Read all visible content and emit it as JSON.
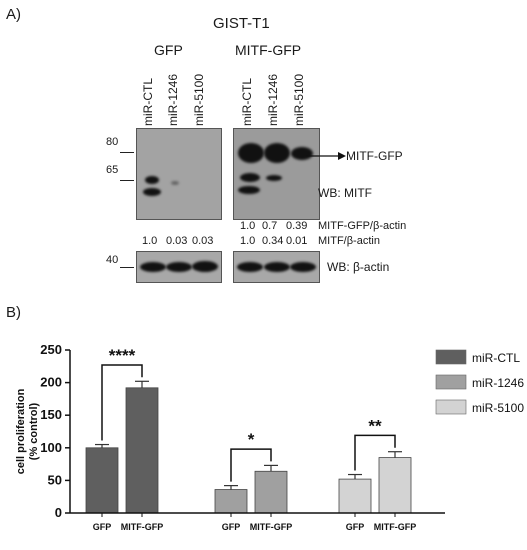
{
  "panelA": {
    "label": "A)",
    "title": "GIST-T1",
    "group_gfp": "GFP",
    "group_mitf": "MITF-GFP",
    "lanes": [
      "miR-CTL",
      "miR-1246",
      "miR-5100",
      "miR-CTL",
      "miR-1246",
      "miR-5100"
    ],
    "mw_markers": [
      "80",
      "65",
      "40"
    ],
    "arrow_label": "MITF-GFP",
    "wb_mitf": "WB: MITF",
    "wb_actin": "WB: β-actin",
    "ratio1_label": "MITF-GFP/β-actin",
    "ratio1_values": [
      "1.0",
      "0.7",
      "0.39"
    ],
    "ratio2_label": "MITF/β-actin",
    "ratio2_gfp_values": [
      "1.0",
      "0.03",
      "0.03"
    ],
    "ratio2_mitf_values": [
      "1.0",
      "0.34",
      "0.01"
    ]
  },
  "panelB": {
    "label": "B)"
  },
  "chart_data": {
    "type": "bar",
    "ylabel": "cell proliferation\n(% control)",
    "ylim": [
      0,
      250
    ],
    "yticks": [
      0,
      50,
      100,
      150,
      200,
      250
    ],
    "groups": [
      {
        "name": "miR-CTL",
        "color": "#5f5f5f",
        "categories": [
          "GFP",
          "MITF-GFP"
        ],
        "values": [
          100,
          192
        ],
        "errors": [
          5,
          10
        ],
        "significance": "****"
      },
      {
        "name": "miR-1246",
        "color": "#a0a0a0",
        "categories": [
          "GFP",
          "MITF-GFP"
        ],
        "values": [
          36,
          64
        ],
        "errors": [
          6,
          9
        ],
        "significance": "*"
      },
      {
        "name": "miR-5100",
        "color": "#d3d3d3",
        "categories": [
          "GFP",
          "MITF-GFP"
        ],
        "values": [
          52,
          85
        ],
        "errors": [
          7,
          9
        ],
        "significance": "**"
      }
    ],
    "legend": [
      "miR-CTL",
      "miR-1246",
      "miR-5100"
    ],
    "legend_position": "right"
  }
}
